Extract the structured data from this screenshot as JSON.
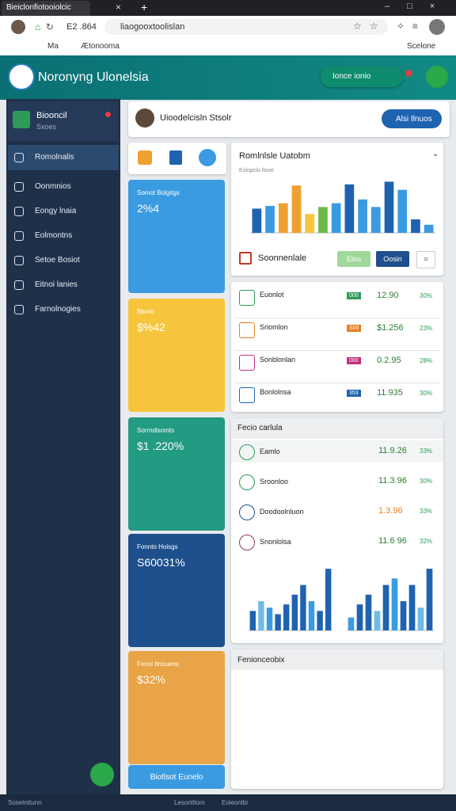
{
  "browser": {
    "tab": "Bieiclonfiotooiolcic",
    "address_left": "E2 .864",
    "url": "liaogooxtoolislan",
    "bookmarks": [
      "Ma",
      "Ætonooma",
      "Scelone"
    ]
  },
  "header": {
    "title": "Noronyng Ulonelsia",
    "button": "Ionce ionio"
  },
  "sidebar": {
    "profile": {
      "name": "Biooncil",
      "sub": "Sxoes"
    },
    "items": [
      "Romolnalis",
      "Oonmnios",
      "Eongy lnaia",
      "Eolmontns",
      "Setoe Bosiot",
      "Eitnoi lanies",
      "Farnolnogies"
    ]
  },
  "topbar": {
    "title": "Uioodelcisln Stsolr",
    "button": "Alsi Ilnuos"
  },
  "tiles": [
    {
      "label": "Somot Bolgitgs",
      "value": "2%4",
      "color": "#3a9be0"
    },
    {
      "label": "Blonlo",
      "value": "$%42",
      "color": "#f7c53c"
    },
    {
      "label": "Sorrndisomts",
      "value": "$1 .220%",
      "color": "#239a82"
    },
    {
      "label": "Fonnto Hoisgs",
      "value": "S60031%",
      "color": "#1d4f8c"
    },
    {
      "label": "Fonoi Itnouens",
      "value": "$32%",
      "color": "#e8a446"
    }
  ],
  "tiles_button": "Biotlsot Eunelo",
  "overview": {
    "title": "Romlnlsle Uatobm",
    "subtitle": "Eolopclo ltooe",
    "ylim": [
      0,
      100
    ],
    "values": [
      45,
      50,
      55,
      88,
      35,
      48,
      55,
      90,
      62,
      48,
      95,
      80,
      25,
      15
    ],
    "colors": [
      "#1f63b0",
      "#3a9be0",
      "#f0a030",
      "#f0a030",
      "#f7c53c",
      "#6cb84a",
      "#3a9be0",
      "#1f63b0",
      "#3a9be0",
      "#3a9be0",
      "#1f63b0",
      "#3a9be0",
      "#1f63b0",
      "#3a9be0"
    ],
    "footer": "Soonnenlale",
    "buttons": [
      "Eloo",
      "Oosin"
    ]
  },
  "list": [
    {
      "label": "Euonlot",
      "badge": "000",
      "value": "12.90",
      "pct": "30%",
      "color": "#2e9a5a"
    },
    {
      "label": "Sriomlon",
      "badge": "S00",
      "value": "$1.256",
      "pct": "23%",
      "color": "#e67e22"
    },
    {
      "label": "Sonblonlan",
      "badge": "000",
      "value": "0.2.95",
      "pct": "28%",
      "color": "#c2307a"
    },
    {
      "label": "Bonlolnsa",
      "badge": "353",
      "value": "11.935",
      "pct": "30%",
      "color": "#1f63b0"
    }
  ],
  "section": {
    "title": "Fecio carlula",
    "rows": [
      {
        "label": "Eamlo",
        "value": "11.9.26",
        "pct": "33%"
      },
      {
        "label": "Sroonloo",
        "value": "11.3.96",
        "pct": "30%"
      },
      {
        "label": "Doodoolnluon",
        "value": "1.3.96",
        "pct": "33%"
      },
      {
        "label": "Snonlolsa",
        "value": "11.6 96",
        "pct": "32%"
      }
    ]
  },
  "mini_charts": [
    {
      "ylim": [
        0,
        100
      ],
      "values": [
        30,
        45,
        35,
        25,
        40,
        55,
        70,
        45,
        30,
        95
      ],
      "colors": [
        "#1f63b0",
        "#6fbbe8",
        "#3a9be0",
        "#1f63b0",
        "#1f63b0",
        "#1f63b0",
        "#1f63b0",
        "#3a9be0",
        "#1f63b0",
        "#1f63b0"
      ]
    },
    {
      "ylim": [
        0,
        100
      ],
      "values": [
        20,
        40,
        55,
        30,
        70,
        80,
        45,
        70,
        35,
        95
      ],
      "colors": [
        "#3a9be0",
        "#1f63b0",
        "#1f63b0",
        "#6fbbe8",
        "#1f63b0",
        "#3a9be0",
        "#1f63b0",
        "#1f63b0",
        "#6fbbe8",
        "#1f63b0"
      ]
    }
  ],
  "section2": {
    "title": "Fenionceobix"
  },
  "footer": [
    "Sosetnttunn",
    "Lesonlltom",
    "Eoieonlbi"
  ]
}
